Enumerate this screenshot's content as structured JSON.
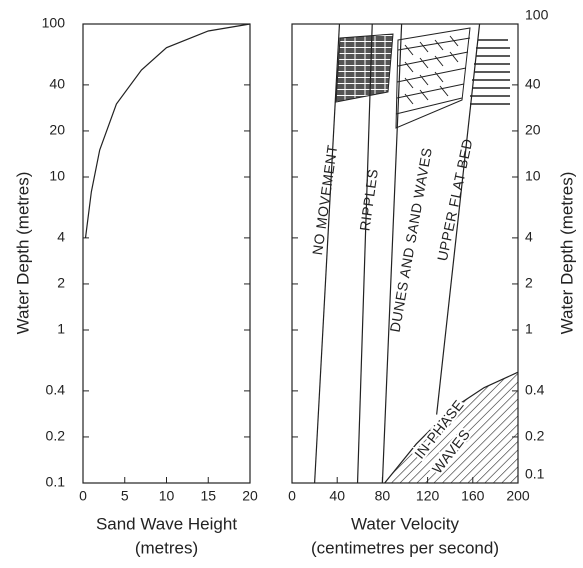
{
  "chart_data": [
    {
      "type": "line",
      "ylog": true,
      "xlabel": [
        "Sand Wave Height",
        "(metres)"
      ],
      "ylabel": "Water Depth (metres)",
      "xlim": [
        0,
        20
      ],
      "xticks": [
        0,
        5,
        10,
        15,
        20
      ],
      "ylim": [
        0.1,
        100
      ],
      "yticks": [
        0.1,
        0.2,
        0.4,
        1,
        2,
        4,
        10,
        20,
        40,
        100
      ],
      "color": "#222222",
      "x": [
        0.3,
        1,
        2,
        4,
        7,
        10,
        15,
        20
      ],
      "y": [
        4,
        8,
        15,
        30,
        50,
        70,
        90,
        100
      ]
    },
    {
      "type": "zones",
      "ylog": true,
      "xlabel": [
        "Water Velocity",
        "(centimetres per second)"
      ],
      "y2label": "Water Depth (metres)",
      "xlim": [
        0,
        200
      ],
      "xticks": [
        0,
        40,
        80,
        120,
        160,
        200
      ],
      "ylim": [
        0.1,
        100
      ],
      "yticks": [
        0.1,
        0.2,
        0.4,
        1,
        2,
        4,
        10,
        20,
        40,
        100
      ],
      "color": "#222222",
      "boundaries": [
        {
          "x": [
            20,
            42
          ],
          "y": [
            0.1,
            100
          ]
        },
        {
          "x": [
            58,
            71
          ],
          "y": [
            0.1,
            100
          ]
        },
        {
          "x": [
            80,
            97
          ],
          "y": [
            0.1,
            100
          ]
        },
        {
          "x": [
            128,
            166
          ],
          "y": [
            0.28,
            100
          ]
        }
      ],
      "in_phase_boundary": {
        "x": [
          82,
          110,
          140,
          170,
          200
        ],
        "y": [
          0.1,
          0.18,
          0.3,
          0.42,
          0.53
        ]
      },
      "annotations": [
        "NO MOVEMENT",
        "RIPPLES",
        "DUNES AND SAND WAVES",
        "UPPER FLAT BED",
        "IN-PHASE",
        "WAVES"
      ]
    }
  ]
}
